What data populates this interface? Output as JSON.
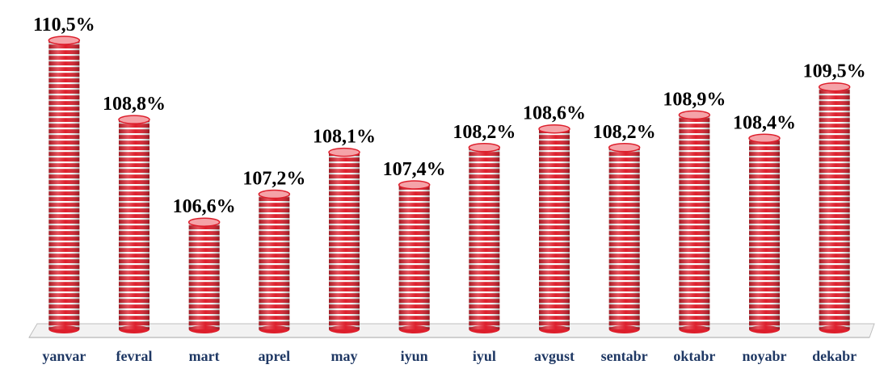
{
  "chart_data": {
    "type": "bar",
    "style": "3d-cylinder",
    "categories": [
      "yanvar",
      "fevral",
      "mart",
      "aprel",
      "may",
      "iyun",
      "iyul",
      "avgust",
      "sentabr",
      "oktabr",
      "noyabr",
      "dekabr"
    ],
    "values": [
      110.5,
      108.8,
      106.6,
      107.2,
      108.1,
      107.4,
      108.2,
      108.6,
      108.2,
      108.9,
      108.4,
      109.5
    ],
    "value_labels": [
      "110,5%",
      "108,8%",
      "106,6%",
      "107,2%",
      "108,1%",
      "107,4%",
      "108,2%",
      "108,6%",
      "108,2%",
      "108,9%",
      "108,4%",
      "109,5%"
    ],
    "title": "",
    "xlabel": "",
    "ylabel": "",
    "ylim": [
      104.3,
      110.5
    ],
    "grid": false,
    "legend": "none",
    "colors": {
      "bar_red": "#dd1f2c",
      "bar_stripe": "#ffffff",
      "category_text": "#1f3864",
      "value_text": "#000000",
      "floor": "#bfbfbf"
    }
  }
}
